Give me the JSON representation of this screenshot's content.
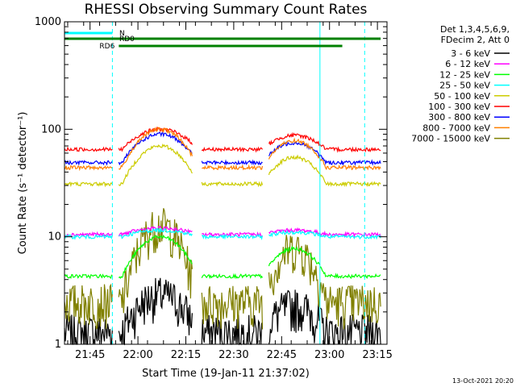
{
  "chart_data": {
    "type": "line",
    "title": "RHESSI Observing Summary Count Rates",
    "xlabel": "Start Time (19-Jan-11 21:37:02)",
    "ylabel": "Count Rate (s⁻¹ detector⁻¹)",
    "yscale": "log",
    "ylim": [
      1,
      1000
    ],
    "y_ticks": [
      1,
      10,
      100,
      1000
    ],
    "y_tick_labels": [
      "1",
      "10",
      "100",
      "1000"
    ],
    "xlim_min": [
      0,
      101
    ],
    "x_ticks_min": [
      8,
      23,
      38,
      53,
      68,
      83,
      98
    ],
    "x_tick_labels": [
      "21:45",
      "22:00",
      "22:15",
      "22:30",
      "22:45",
      "23:00",
      "23:15"
    ],
    "grid": false,
    "legend_position": "right",
    "legend_header": [
      "Det 1,3,4,5,6,9,",
      "FDecim 2, Att 0"
    ],
    "series": [
      {
        "name": "3 - 6 keV",
        "color": "#000000",
        "base": 1.3,
        "peak": 2.9
      },
      {
        "name": "6 - 12 keV",
        "color": "#ff00ff",
        "base": 10.5,
        "peak": 12.0
      },
      {
        "name": "12 - 25 keV",
        "color": "#00ff00",
        "base": 4.3,
        "peak": 10.0
      },
      {
        "name": "25 - 50 keV",
        "color": "#00ffff",
        "base": 10.0,
        "peak": 11.5
      },
      {
        "name": "50 - 100 keV",
        "color": "#cccc00",
        "base": 31,
        "peak": 70
      },
      {
        "name": "100 - 300 keV",
        "color": "#ff0000",
        "base": 65,
        "peak": 100
      },
      {
        "name": "300 - 800 keV",
        "color": "#0000ff",
        "base": 49,
        "peak": 90
      },
      {
        "name": "800 - 7000 keV",
        "color": "#ff7f00",
        "base": 44,
        "peak": 100
      },
      {
        "name": "7000 - 15000 keV",
        "color": "#808000",
        "base": 2.5,
        "peak": 13
      }
    ],
    "annotations": [
      {
        "label": "N",
        "color": "#00ffff",
        "start_min": 0,
        "end_min": 15
      },
      {
        "label": "RD0",
        "color": "#008000",
        "start_min": 0,
        "end_min": 99
      },
      {
        "label": "RD6",
        "color": "#008000",
        "start_min": 17,
        "end_min": 87
      }
    ],
    "dashed_markers_min": [
      15,
      94
    ],
    "solid_markers_min": [
      0,
      80
    ]
  },
  "footer": {
    "timestamp": "13-Oct-2021 20:20"
  }
}
